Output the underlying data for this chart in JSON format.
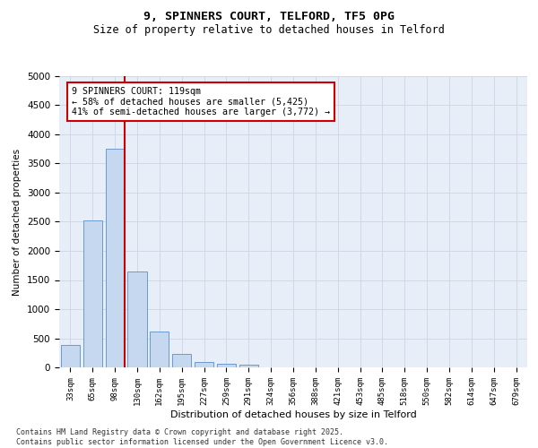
{
  "title1": "9, SPINNERS COURT, TELFORD, TF5 0PG",
  "title2": "Size of property relative to detached houses in Telford",
  "xlabel": "Distribution of detached houses by size in Telford",
  "ylabel": "Number of detached properties",
  "categories": [
    "33sqm",
    "65sqm",
    "98sqm",
    "130sqm",
    "162sqm",
    "195sqm",
    "227sqm",
    "259sqm",
    "291sqm",
    "324sqm",
    "356sqm",
    "388sqm",
    "421sqm",
    "453sqm",
    "485sqm",
    "518sqm",
    "550sqm",
    "582sqm",
    "614sqm",
    "647sqm",
    "679sqm"
  ],
  "values": [
    380,
    2530,
    3760,
    1650,
    620,
    230,
    100,
    55,
    40,
    5,
    0,
    0,
    0,
    0,
    0,
    0,
    0,
    0,
    0,
    0,
    0
  ],
  "bar_color": "#c5d8f0",
  "bar_edge_color": "#5b8fc9",
  "vline_bar_index": 2,
  "annotation_text": "9 SPINNERS COURT: 119sqm\n← 58% of detached houses are smaller (5,425)\n41% of semi-detached houses are larger (3,772) →",
  "annotation_box_color": "#ffffff",
  "annotation_box_edge": "#cc0000",
  "vline_color": "#cc0000",
  "ylim": [
    0,
    5000
  ],
  "yticks": [
    0,
    500,
    1000,
    1500,
    2000,
    2500,
    3000,
    3500,
    4000,
    4500,
    5000
  ],
  "grid_color": "#d0d8e8",
  "bg_color": "#e8eef8",
  "footer1": "Contains HM Land Registry data © Crown copyright and database right 2025.",
  "footer2": "Contains public sector information licensed under the Open Government Licence v3.0."
}
